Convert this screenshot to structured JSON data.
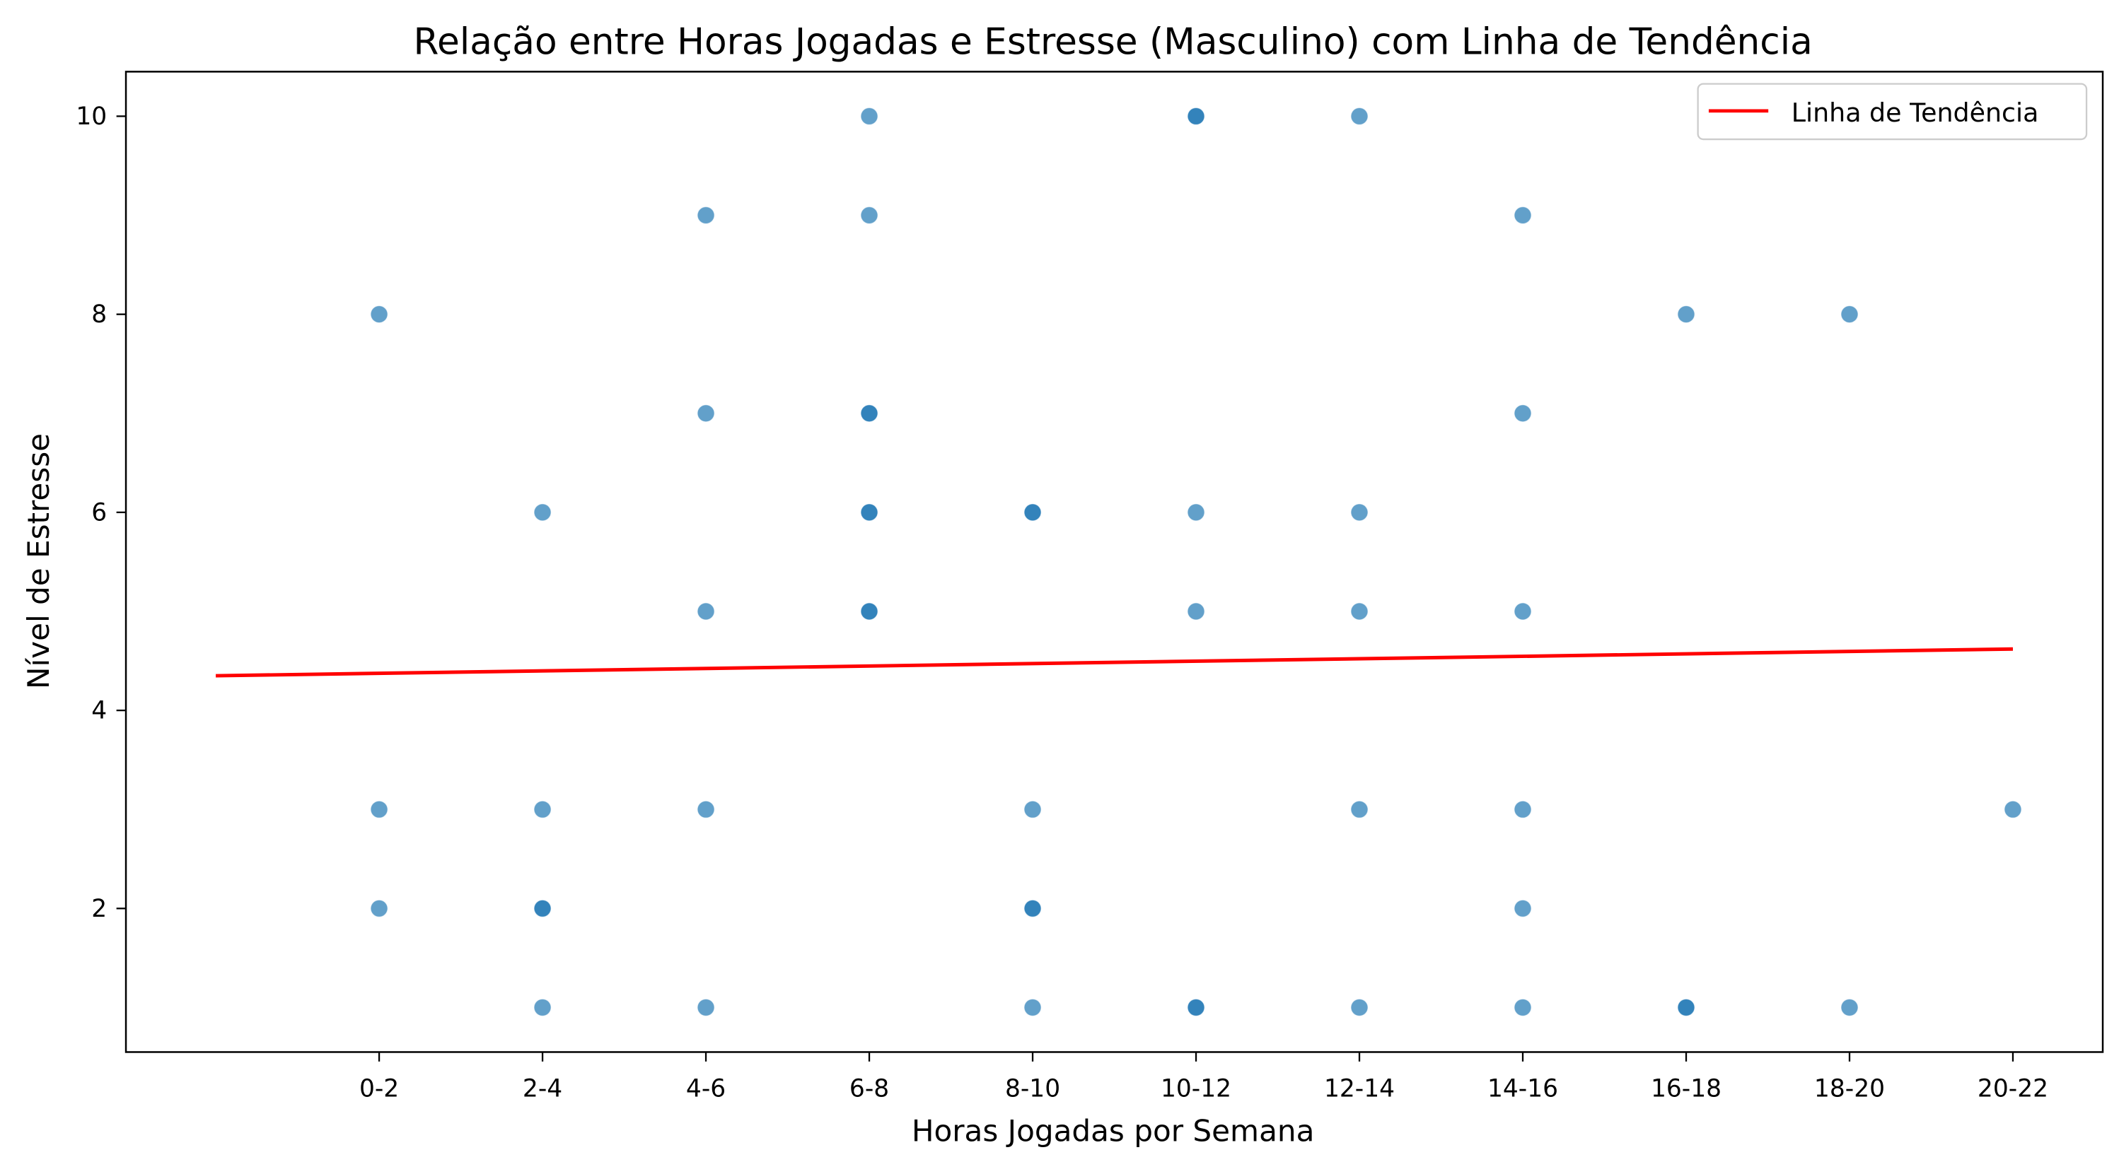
{
  "chart_data": {
    "type": "scatter",
    "title": "Relação entre Horas Jogadas e Estresse (Masculino) com Linha de Tendência",
    "xlabel": "Horas Jogadas por Semana",
    "ylabel": "Nível de Estresse",
    "x_categories": [
      "0-2",
      "2-4",
      "4-6",
      "6-8",
      "8-10",
      "10-12",
      "12-14",
      "14-16",
      "16-18",
      "18-20",
      "20-22"
    ],
    "y_ticks": [
      2,
      4,
      6,
      8,
      10
    ],
    "ylim": [
      0.55,
      10.45
    ],
    "xlim": [
      -1.55,
      10.55
    ],
    "grid": false,
    "legend_position": "top-right",
    "points": [
      {
        "x": "0-2",
        "y": 8,
        "n": 1
      },
      {
        "x": "0-2",
        "y": 3,
        "n": 1
      },
      {
        "x": "0-2",
        "y": 2,
        "n": 1
      },
      {
        "x": "2-4",
        "y": 6,
        "n": 1
      },
      {
        "x": "2-4",
        "y": 3,
        "n": 1
      },
      {
        "x": "2-4",
        "y": 2,
        "n": 2
      },
      {
        "x": "2-4",
        "y": 1,
        "n": 1
      },
      {
        "x": "4-6",
        "y": 9,
        "n": 1
      },
      {
        "x": "4-6",
        "y": 7,
        "n": 1
      },
      {
        "x": "4-6",
        "y": 5,
        "n": 1
      },
      {
        "x": "4-6",
        "y": 3,
        "n": 1
      },
      {
        "x": "4-6",
        "y": 1,
        "n": 1
      },
      {
        "x": "6-8",
        "y": 10,
        "n": 1
      },
      {
        "x": "6-8",
        "y": 9,
        "n": 1
      },
      {
        "x": "6-8",
        "y": 7,
        "n": 2
      },
      {
        "x": "6-8",
        "y": 6,
        "n": 2
      },
      {
        "x": "6-8",
        "y": 5,
        "n": 2
      },
      {
        "x": "8-10",
        "y": 6,
        "n": 2
      },
      {
        "x": "8-10",
        "y": 3,
        "n": 1
      },
      {
        "x": "8-10",
        "y": 2,
        "n": 2
      },
      {
        "x": "8-10",
        "y": 1,
        "n": 1
      },
      {
        "x": "10-12",
        "y": 10,
        "n": 2
      },
      {
        "x": "10-12",
        "y": 6,
        "n": 1
      },
      {
        "x": "10-12",
        "y": 5,
        "n": 1
      },
      {
        "x": "10-12",
        "y": 1,
        "n": 2
      },
      {
        "x": "12-14",
        "y": 10,
        "n": 1
      },
      {
        "x": "12-14",
        "y": 6,
        "n": 1
      },
      {
        "x": "12-14",
        "y": 5,
        "n": 1
      },
      {
        "x": "12-14",
        "y": 3,
        "n": 1
      },
      {
        "x": "12-14",
        "y": 1,
        "n": 1
      },
      {
        "x": "14-16",
        "y": 9,
        "n": 1
      },
      {
        "x": "14-16",
        "y": 7,
        "n": 1
      },
      {
        "x": "14-16",
        "y": 5,
        "n": 1
      },
      {
        "x": "14-16",
        "y": 3,
        "n": 1
      },
      {
        "x": "14-16",
        "y": 2,
        "n": 1
      },
      {
        "x": "14-16",
        "y": 1,
        "n": 1
      },
      {
        "x": "16-18",
        "y": 8,
        "n": 1
      },
      {
        "x": "16-18",
        "y": 1,
        "n": 2
      },
      {
        "x": "18-20",
        "y": 8,
        "n": 1
      },
      {
        "x": "18-20",
        "y": 1,
        "n": 1
      },
      {
        "x": "20-22",
        "y": 3,
        "n": 1
      }
    ],
    "trendline": {
      "name": "Linha de Tendência",
      "color": "#ff0000",
      "x_start": -1,
      "y_start": 4.35,
      "x_end": 10,
      "y_end": 4.62
    },
    "point_color": "#1f77b4",
    "point_opacity": 0.7
  }
}
